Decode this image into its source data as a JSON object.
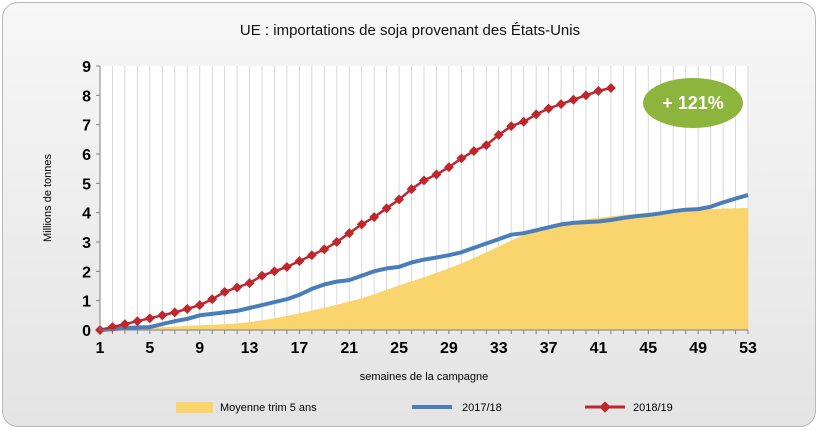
{
  "chart_data": {
    "type": "line",
    "title": "UE : importations de soja provenant des États-Unis",
    "xlabel": "semaines de la campagne",
    "ylabel": "Millions de tonnes",
    "xlim": [
      1,
      53
    ],
    "ylim": [
      0,
      9
    ],
    "x_ticks": [
      1,
      5,
      9,
      13,
      17,
      21,
      25,
      29,
      33,
      37,
      41,
      45,
      49,
      53
    ],
    "y_ticks": [
      0,
      1,
      2,
      3,
      4,
      5,
      6,
      7,
      8,
      9
    ],
    "grid": "vertical",
    "legend_position": "bottom",
    "annotation": "+ 121%",
    "annotation_color": "#8DB43C",
    "series": [
      {
        "name": "Moyenne trim 5 ans",
        "kind": "area",
        "color": "#FAD56E",
        "values": [
          0,
          0.02,
          0.04,
          0.06,
          0.08,
          0.1,
          0.12,
          0.14,
          0.16,
          0.18,
          0.2,
          0.22,
          0.27,
          0.33,
          0.4,
          0.48,
          0.57,
          0.66,
          0.76,
          0.86,
          0.97,
          1.08,
          1.22,
          1.37,
          1.52,
          1.66,
          1.8,
          1.95,
          2.1,
          2.27,
          2.45,
          2.65,
          2.85,
          3.05,
          3.25,
          3.42,
          3.56,
          3.65,
          3.72,
          3.78,
          3.83,
          3.88,
          3.92,
          3.96,
          3.99,
          4.02,
          4.05,
          4.08,
          4.1,
          4.12,
          4.14,
          4.15,
          4.16
        ]
      },
      {
        "name": "2017/18",
        "kind": "line",
        "color": "#4A7EBB",
        "values": [
          0,
          0.03,
          0.06,
          0.09,
          0.1,
          0.2,
          0.3,
          0.38,
          0.5,
          0.55,
          0.6,
          0.65,
          0.75,
          0.85,
          0.95,
          1.05,
          1.2,
          1.4,
          1.55,
          1.65,
          1.7,
          1.85,
          2.0,
          2.1,
          2.15,
          2.3,
          2.4,
          2.47,
          2.55,
          2.65,
          2.8,
          2.95,
          3.1,
          3.25,
          3.3,
          3.4,
          3.5,
          3.6,
          3.65,
          3.68,
          3.7,
          3.75,
          3.82,
          3.88,
          3.92,
          3.98,
          4.05,
          4.1,
          4.12,
          4.2,
          4.35,
          4.48,
          4.6
        ]
      },
      {
        "name": "2018/19",
        "kind": "line-marker",
        "color": "#C0272D",
        "values": [
          0,
          0.1,
          0.2,
          0.3,
          0.4,
          0.5,
          0.6,
          0.72,
          0.85,
          1.05,
          1.3,
          1.45,
          1.6,
          1.85,
          2.0,
          2.15,
          2.35,
          2.55,
          2.75,
          3.0,
          3.3,
          3.6,
          3.85,
          4.15,
          4.45,
          4.8,
          5.1,
          5.3,
          5.55,
          5.85,
          6.1,
          6.3,
          6.65,
          6.95,
          7.1,
          7.35,
          7.55,
          7.7,
          7.85,
          8.0,
          8.15,
          8.25
        ]
      }
    ]
  }
}
